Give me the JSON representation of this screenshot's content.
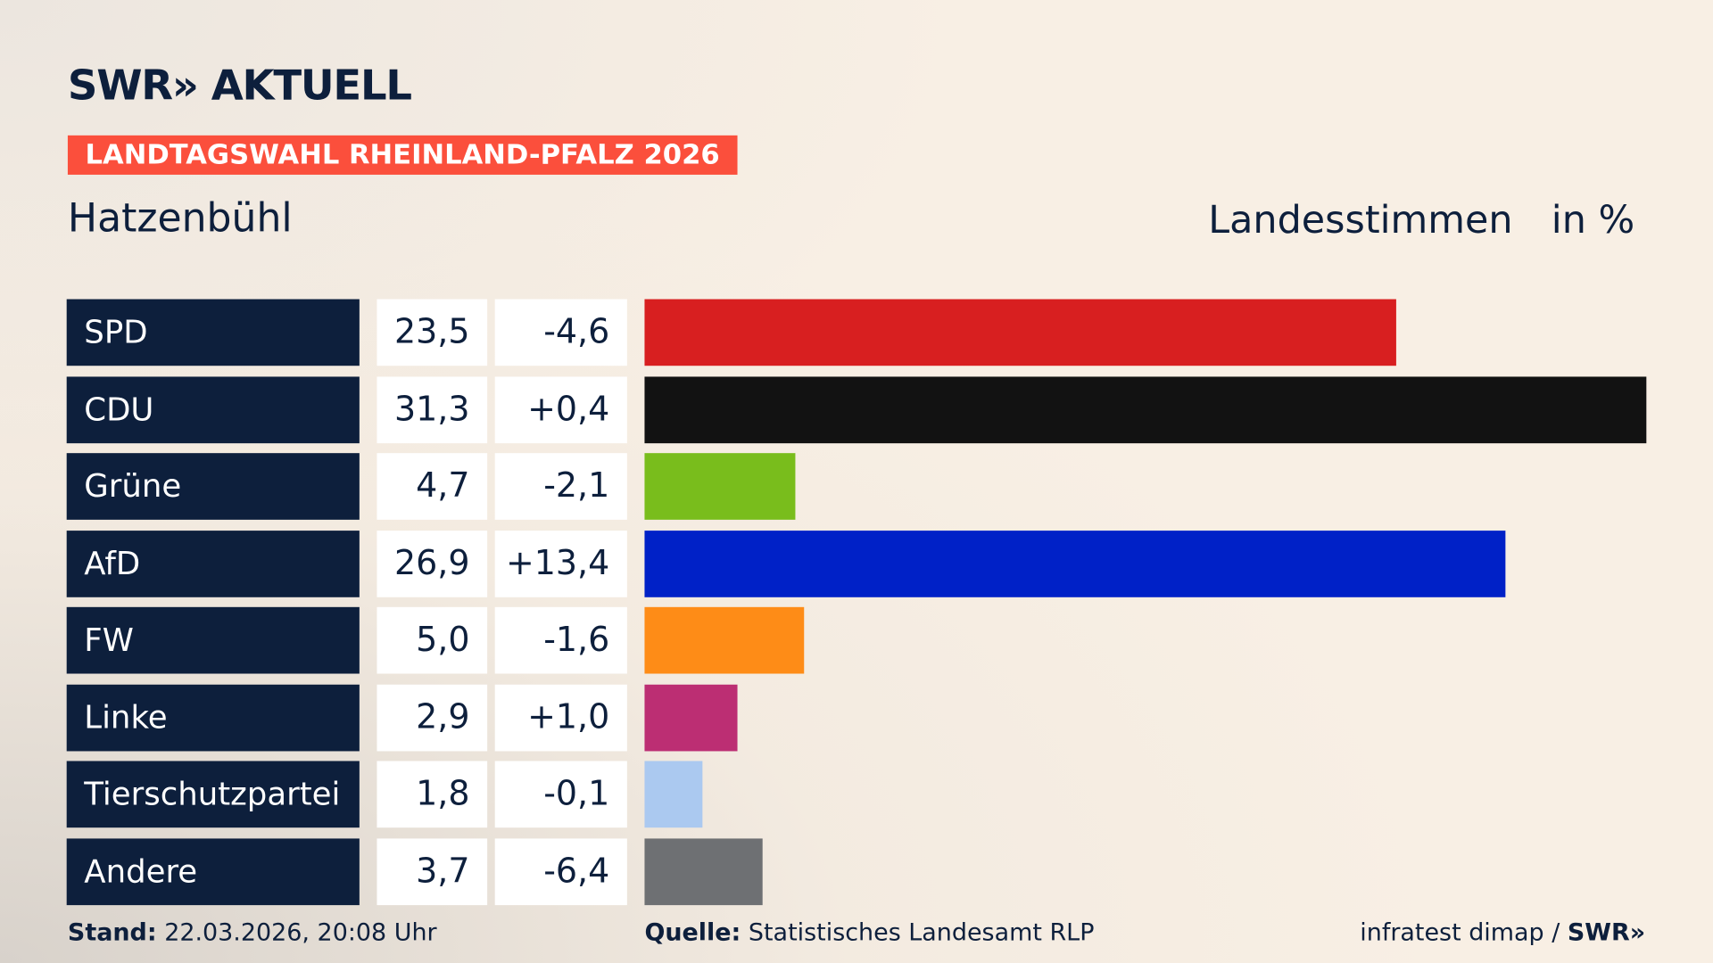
{
  "brand": {
    "logo": "SWR» AKTUELL"
  },
  "banner": "LANDTAGSWAHL RHEINLAND-PFALZ 2026",
  "place": "Hatzenbühl",
  "header": {
    "measure": "Landesstimmen",
    "unit": "in %"
  },
  "chart_data": {
    "type": "bar",
    "orientation": "horizontal",
    "categories": [
      "SPD",
      "CDU",
      "Grüne",
      "AfD",
      "FW",
      "Linke",
      "Tierschutzpartei",
      "Andere"
    ],
    "values": [
      "23,5",
      "31,3",
      "4,7",
      "26,9",
      "5,0",
      "2,9",
      "1,8",
      "3,7"
    ],
    "numeric_values": [
      23.5,
      31.3,
      4.7,
      26.9,
      5.0,
      2.9,
      1.8,
      3.7
    ],
    "changes": [
      "-4,6",
      "+0,4",
      "-2,1",
      "+13,4",
      "-1,6",
      "+1,0",
      "-0,1",
      "-6,4"
    ],
    "colors": [
      "#d81f20",
      "#121212",
      "#79bd1c",
      "#0021c7",
      "#fe8c17",
      "#bc2e73",
      "#abc9f0",
      "#6e7073"
    ],
    "ylabel": "Landesstimmen",
    "unit": "in %",
    "grid": false
  },
  "footer": {
    "stand_label": "Stand:",
    "stand_value": "22.03.2026, 20:08 Uhr",
    "source_label": "Quelle:",
    "source_value": "Statistisches Landesamt RLP",
    "credit": "infratest dimap / ",
    "credit_logo": "SWR»"
  }
}
